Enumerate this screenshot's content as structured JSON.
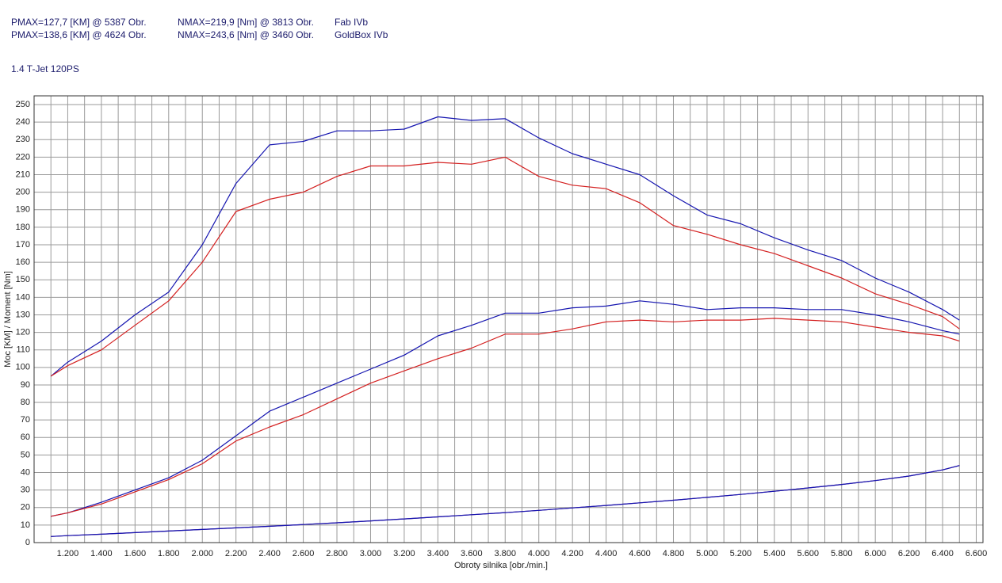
{
  "header": {
    "runs": [
      {
        "pmax": "PMAX=127,7 [KM] @ 5387 Obr.",
        "nmax": "NMAX=219,9 [Nm] @ 3813 Obr.",
        "label": "Fab IVb"
      },
      {
        "pmax": "PMAX=138,6 [KM] @ 4624 Obr.",
        "nmax": "NMAX=243,6 [Nm] @ 3460 Obr.",
        "label": "GoldBox IVb"
      }
    ],
    "subtitle": "1.4 T-Jet 120PS"
  },
  "chart_data": {
    "type": "line",
    "xlabel": "Obroty silnika [obr./min.]",
    "ylabel": "Moc [KM] / Moment [Nm]",
    "xlim": [
      1000,
      6640
    ],
    "ylim": [
      0,
      255
    ],
    "grid": true,
    "xticks": [
      {
        "value": 1200,
        "label": "1.200"
      },
      {
        "value": 1400,
        "label": "1.400"
      },
      {
        "value": 1600,
        "label": "1.600"
      },
      {
        "value": 1800,
        "label": "1.800"
      },
      {
        "value": 2000,
        "label": "2.000"
      },
      {
        "value": 2200,
        "label": "2.200"
      },
      {
        "value": 2400,
        "label": "2.400"
      },
      {
        "value": 2600,
        "label": "2.600"
      },
      {
        "value": 2800,
        "label": "2.800"
      },
      {
        "value": 3000,
        "label": "3.000"
      },
      {
        "value": 3200,
        "label": "3.200"
      },
      {
        "value": 3400,
        "label": "3.400"
      },
      {
        "value": 3600,
        "label": "3.600"
      },
      {
        "value": 3800,
        "label": "3.800"
      },
      {
        "value": 4000,
        "label": "4.000"
      },
      {
        "value": 4200,
        "label": "4.200"
      },
      {
        "value": 4400,
        "label": "4.400"
      },
      {
        "value": 4600,
        "label": "4.600"
      },
      {
        "value": 4800,
        "label": "4.800"
      },
      {
        "value": 5000,
        "label": "5.000"
      },
      {
        "value": 5200,
        "label": "5.200"
      },
      {
        "value": 5400,
        "label": "5.400"
      },
      {
        "value": 5600,
        "label": "5.600"
      },
      {
        "value": 5800,
        "label": "5.800"
      },
      {
        "value": 6000,
        "label": "6.000"
      },
      {
        "value": 6200,
        "label": "6.200"
      },
      {
        "value": 6400,
        "label": "6.400"
      },
      {
        "value": 6600,
        "label": "6.600"
      }
    ],
    "xminor_ticks": [
      1100,
      1300,
      1500,
      1700,
      1900,
      2100,
      2300,
      2500,
      2700,
      2900,
      3100,
      3300,
      3500,
      3700,
      3900,
      4100,
      4300,
      4500,
      4700,
      4900,
      5100,
      5300,
      5500,
      5700,
      5900,
      6100,
      6300,
      6500
    ],
    "yticks": [
      0,
      10,
      20,
      30,
      40,
      50,
      60,
      70,
      80,
      90,
      100,
      110,
      120,
      130,
      140,
      150,
      160,
      170,
      180,
      190,
      200,
      210,
      220,
      230,
      240,
      250
    ],
    "x": [
      1100,
      1200,
      1400,
      1600,
      1800,
      2000,
      2200,
      2400,
      2600,
      2800,
      3000,
      3200,
      3400,
      3600,
      3800,
      4000,
      4200,
      4400,
      4600,
      4800,
      5000,
      5200,
      5400,
      5600,
      5800,
      6000,
      6200,
      6400,
      6500
    ],
    "series": [
      {
        "color": "#1515b0",
        "values": [
          95,
          103,
          115,
          130,
          143,
          170,
          205,
          227,
          229,
          235,
          235,
          236,
          243,
          241,
          242,
          231,
          222,
          216,
          210,
          198,
          187,
          182,
          174,
          167,
          161,
          151,
          143,
          133,
          127
        ]
      },
      {
        "color": "#d42020",
        "values": [
          95,
          101,
          110,
          124,
          138,
          160,
          189,
          196,
          200,
          209,
          215,
          215,
          217,
          216,
          220,
          209,
          204,
          202,
          194,
          181,
          176,
          170,
          165,
          158,
          151,
          142,
          136,
          129,
          122
        ]
      },
      {
        "color": "#1515b0",
        "values": [
          15,
          17,
          23,
          30,
          37,
          47,
          61,
          75,
          83,
          91,
          99,
          107,
          118,
          124,
          131,
          131,
          134,
          135,
          138,
          136,
          133,
          134,
          134,
          133,
          133,
          130,
          126,
          121,
          119
        ]
      },
      {
        "color": "#d42020",
        "values": [
          15,
          17,
          22,
          29,
          36,
          45,
          58,
          66,
          73,
          82,
          91,
          98,
          105,
          111,
          119,
          119,
          122,
          126,
          127,
          126,
          127,
          127,
          128,
          127,
          126,
          123,
          120,
          118,
          115
        ]
      },
      {
        "color": "#6a1a8a",
        "values": [
          3.5,
          4,
          4.8,
          5.7,
          6.6,
          7.5,
          8.4,
          9.3,
          10.3,
          11.3,
          12.4,
          13.5,
          14.7,
          15.9,
          17.1,
          18.4,
          19.8,
          21.2,
          22.7,
          24.2,
          25.8,
          27.5,
          29.3,
          31.2,
          33.2,
          35.4,
          38,
          41.5,
          44
        ]
      },
      {
        "color": "#1515b0",
        "values": [
          3.5,
          4,
          4.8,
          5.7,
          6.6,
          7.5,
          8.4,
          9.3,
          10.3,
          11.3,
          12.4,
          13.5,
          14.7,
          15.9,
          17.1,
          18.4,
          19.8,
          21.2,
          22.7,
          24.2,
          25.8,
          27.5,
          29.3,
          31.2,
          33.2,
          35.4,
          38,
          41.5,
          44
        ]
      }
    ]
  }
}
